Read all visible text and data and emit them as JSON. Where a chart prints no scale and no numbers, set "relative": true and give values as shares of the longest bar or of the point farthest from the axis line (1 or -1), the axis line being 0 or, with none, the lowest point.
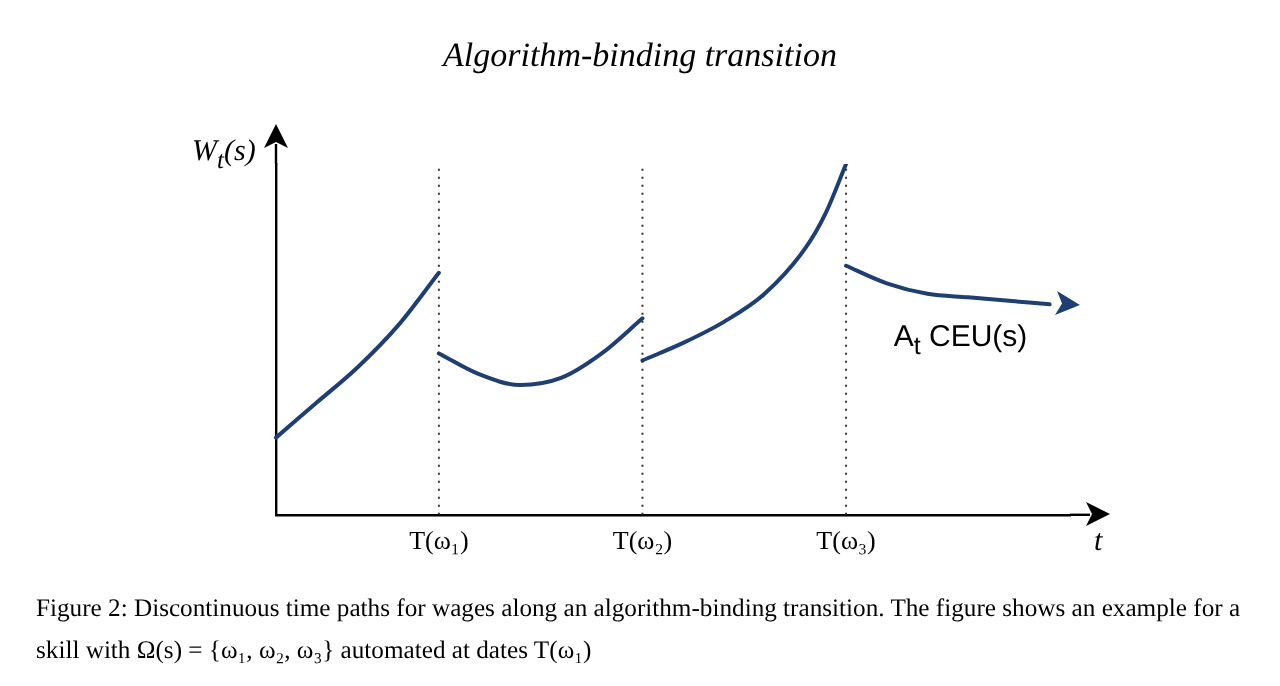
{
  "chart_data": {
    "type": "line",
    "title": "Algorithm-binding transition",
    "xlabel": "t",
    "ylabel": "W$_{t}$(s)",
    "relative": true,
    "categories": [
      null,
      null,
      null,
      null,
      null,
      null,
      null,
      null,
      "T(ω₁)",
      null,
      null,
      null,
      null,
      null,
      null,
      null,
      null,
      null,
      "T(ω₂)",
      null,
      null,
      null,
      null,
      null,
      null,
      null,
      null,
      null,
      "T(ω₃)",
      null,
      null,
      null,
      null,
      null,
      null,
      null,
      null,
      null,
      null,
      null
    ],
    "series": [
      {
        "color": "#1f3f73",
        "values": [
          0.22,
          null,
          0.32,
          null,
          0.42,
          null,
          0.54,
          null,
          0.69,
          null,
          null,
          null,
          null,
          null,
          null,
          null,
          null,
          null,
          null,
          null,
          null,
          null,
          null,
          null,
          null,
          null,
          null,
          null,
          null,
          null,
          null,
          null,
          null,
          null,
          null,
          null,
          null,
          null,
          null,
          null
        ]
      },
      {
        "color": "#1f3f73",
        "values": [
          null,
          null,
          null,
          null,
          null,
          null,
          null,
          null,
          0.46,
          null,
          0.4,
          null,
          0.37,
          null,
          0.39,
          null,
          0.46,
          null,
          0.56,
          null,
          null,
          null,
          null,
          null,
          null,
          null,
          null,
          null,
          null,
          null,
          null,
          null,
          null,
          null,
          null,
          null,
          null,
          null,
          null,
          null
        ]
      },
      {
        "color": "#1f3f73",
        "values": [
          null,
          null,
          null,
          null,
          null,
          null,
          null,
          null,
          null,
          null,
          null,
          null,
          null,
          null,
          null,
          null,
          null,
          null,
          0.44,
          null,
          0.49,
          null,
          0.55,
          null,
          0.63,
          null,
          0.76,
          0.86,
          1,
          null,
          null,
          null,
          null,
          null,
          null,
          null,
          null,
          null,
          null,
          null
        ]
      },
      {
        "name": "A$_{t}$ CEU(s)",
        "color": "#1f3f73",
        "values": [
          null,
          null,
          null,
          null,
          null,
          null,
          null,
          null,
          null,
          null,
          null,
          null,
          null,
          null,
          null,
          null,
          null,
          null,
          null,
          null,
          null,
          null,
          null,
          null,
          null,
          null,
          null,
          null,
          0.71,
          null,
          0.66,
          null,
          0.63,
          null,
          0.62,
          null,
          0.61,
          null,
          0.6,
          null
        ]
      }
    ],
    "ref_lines": [
      {
        "axis": "x",
        "value": "T(ω₁)",
        "line_style": "dotted"
      },
      {
        "axis": "x",
        "value": "T(ω₂)",
        "line_style": "dotted"
      },
      {
        "axis": "x",
        "value": "T(ω₃)",
        "line_style": "dotted"
      }
    ],
    "annotations": [
      "Figure 2: Discontinuous time paths for wages along an algorithm-binding transition. The figure shows an example for a skill with Ω(s) = {ω₁, ω₂, ω₃} automated at dates T(ω₁)"
    ]
  }
}
